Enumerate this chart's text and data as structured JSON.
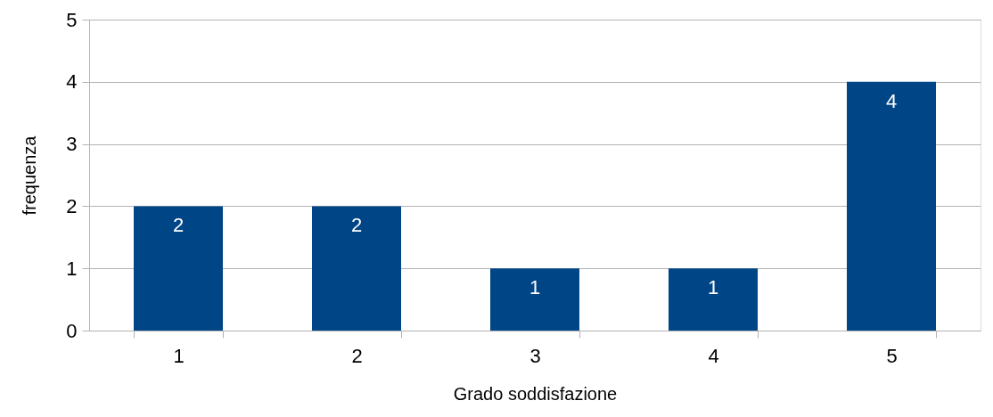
{
  "chart_data": {
    "type": "bar",
    "xlabel": "Grado soddisfazione",
    "ylabel": "frequenza",
    "categories": [
      "1",
      "2",
      "3",
      "4",
      "5"
    ],
    "values": [
      2,
      2,
      1,
      1,
      4
    ],
    "color": "#004586",
    "ylim": [
      0,
      5
    ],
    "yticks": [
      0,
      1,
      2,
      3,
      4,
      5
    ],
    "grid": "y",
    "data_labels": true
  }
}
